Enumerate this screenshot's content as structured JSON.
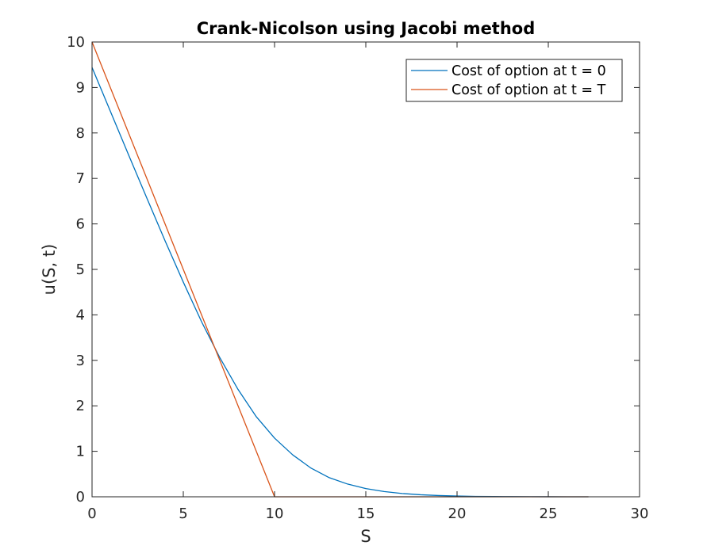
{
  "chart_data": {
    "type": "line",
    "title": "Crank-Nicolson using Jacobi method",
    "xlabel": "S",
    "ylabel": "u(S, t)",
    "xlim": [
      0,
      30
    ],
    "ylim": [
      0,
      10
    ],
    "xticks": [
      0,
      5,
      10,
      15,
      20,
      25,
      30
    ],
    "yticks": [
      0,
      1,
      2,
      3,
      4,
      5,
      6,
      7,
      8,
      9,
      10
    ],
    "grid": false,
    "legend_position": "top-right",
    "series": [
      {
        "name": "Cost of option at t = 0",
        "color": "#0072BD",
        "x": [
          0,
          1,
          2,
          3,
          4,
          5,
          6,
          7,
          8,
          9,
          10,
          11,
          12,
          13,
          14,
          15,
          16,
          17,
          18,
          19,
          20,
          21,
          22,
          23,
          24,
          25,
          26,
          27.2
        ],
        "y": [
          9.44,
          8.48,
          7.52,
          6.57,
          5.63,
          4.72,
          3.85,
          3.06,
          2.36,
          1.76,
          1.29,
          0.92,
          0.63,
          0.42,
          0.28,
          0.18,
          0.115,
          0.072,
          0.045,
          0.027,
          0.016,
          0.009,
          0.005,
          0.003,
          0.002,
          0.001,
          0.0005,
          0
        ]
      },
      {
        "name": "Cost of option at t = T",
        "color": "#D95319",
        "x": [
          0,
          10,
          27.2
        ],
        "y": [
          10,
          0,
          0
        ]
      }
    ]
  }
}
